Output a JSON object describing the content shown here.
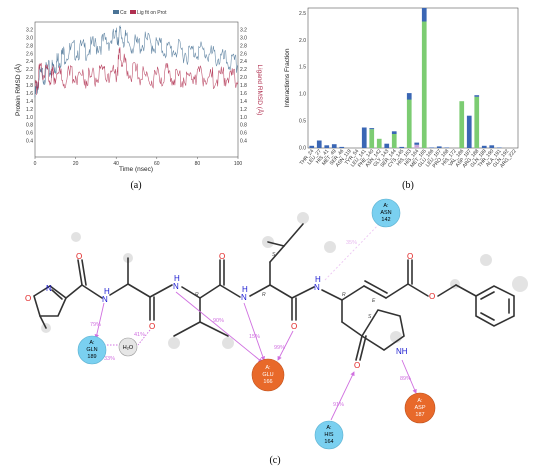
{
  "panels": {
    "a": "(a)",
    "b": "(b)",
    "c": "(c)"
  },
  "chart_data": [
    {
      "type": "line",
      "xlabel": "Time (nsec)",
      "ylabel_left": "Protein RMSD (Å)",
      "ylabel_right": "Ligand RMSD (Å)",
      "legend": [
        "Cα",
        "Lig fit on Prot"
      ],
      "xlim": [
        0,
        100
      ],
      "ylim": [
        0,
        3.4
      ],
      "xticks": [
        "0",
        "20",
        "40",
        "60",
        "80",
        "100"
      ],
      "yticks": [
        "0.4",
        "0.6",
        "0.8",
        "1.0",
        "1.2",
        "1.4",
        "1.6",
        "1.8",
        "2.0",
        "2.2",
        "2.4",
        "2.6",
        "2.8",
        "3.0",
        "3.2"
      ],
      "series": [
        {
          "name": "Cα",
          "color": "#4a7396",
          "x": [
            0,
            2,
            5,
            8,
            10,
            12,
            15,
            20,
            25,
            30,
            35,
            40,
            42,
            45,
            50,
            55,
            60,
            65,
            70,
            75,
            80,
            85,
            90,
            95,
            100
          ],
          "y": [
            1.5,
            2.0,
            2.1,
            2.2,
            2.3,
            2.5,
            2.6,
            2.7,
            2.7,
            2.8,
            2.9,
            3.0,
            3.1,
            2.9,
            2.8,
            2.9,
            2.8,
            2.7,
            2.7,
            2.6,
            2.7,
            2.6,
            2.5,
            2.4,
            2.3
          ]
        },
        {
          "name": "Lig fit on Prot",
          "color": "#b03050",
          "x": [
            0,
            2,
            5,
            8,
            10,
            15,
            20,
            25,
            30,
            35,
            40,
            42,
            45,
            50,
            55,
            60,
            65,
            70,
            75,
            80,
            85,
            90,
            95,
            100
          ],
          "y": [
            1.6,
            2.1,
            2.2,
            2.0,
            2.1,
            2.0,
            2.1,
            2.0,
            2.0,
            2.1,
            2.1,
            2.6,
            2.2,
            2.1,
            2.0,
            2.0,
            2.1,
            2.0,
            2.0,
            2.1,
            2.0,
            2.0,
            2.0,
            1.9
          ]
        }
      ]
    },
    {
      "type": "bar",
      "ylabel": "Interactions Fraction",
      "ylim": [
        0,
        2.6
      ],
      "yticks": [
        "0.0",
        "0.5",
        "1.0",
        "1.5",
        "2.0",
        "2.5"
      ],
      "categories": [
        "THR_24",
        "LEU_27",
        "HIS_41",
        "MET_49",
        "SER_46",
        "ASN_119",
        "TYR_54",
        "LEU_141",
        "PHE_140",
        "ASN_142",
        "GLY_143",
        "SER_144",
        "CYS_145",
        "HIS_163",
        "HIS_164",
        "MET_165",
        "GLU_166",
        "LEU_167",
        "PRO_168",
        "HIS_172",
        "VAL_186",
        "ASP_187",
        "ARG_188",
        "GLN_189",
        "THR_190",
        "ALA_191",
        "GLN_192",
        "ARG_222"
      ],
      "series": [
        {
          "name": "H-bonds",
          "color": "#7ccc72",
          "values": [
            0,
            0,
            0,
            0,
            0,
            0,
            0,
            0,
            0.35,
            0.17,
            0,
            0.26,
            0,
            0.9,
            0,
            2.35,
            0,
            0,
            0,
            0,
            0.87,
            0,
            0.95,
            0,
            0,
            0,
            0,
            0
          ]
        },
        {
          "name": "Hydrophobic",
          "color": "#c9a8d8",
          "values": [
            0,
            0,
            0,
            0,
            0,
            0,
            0,
            0,
            0,
            0,
            0,
            0,
            0,
            0,
            0.06,
            0,
            0,
            0,
            0,
            0,
            0,
            0,
            0,
            0,
            0,
            0,
            0,
            0
          ]
        },
        {
          "name": "Water bridges",
          "color": "#3a66b4",
          "values": [
            0.04,
            0.14,
            0.05,
            0.07,
            0.02,
            0,
            0,
            0.38,
            0.02,
            0,
            0.08,
            0.05,
            0.02,
            0.12,
            0.04,
            0.25,
            0.01,
            0.03,
            0.01,
            0,
            0,
            0.6,
            0.03,
            0.04,
            0.05,
            0.01,
            0,
            0
          ]
        }
      ]
    }
  ],
  "diagram": {
    "residues": [
      {
        "line1": "A:",
        "line2": "ASN",
        "line3": "142",
        "kind": "polar"
      },
      {
        "line1": "A:",
        "line2": "GLN",
        "line3": "189",
        "kind": "polar"
      },
      {
        "line1": "A:",
        "line2": "GLU",
        "line3": "166",
        "kind": "negative"
      },
      {
        "line1": "A:",
        "line2": "HIS",
        "line3": "164",
        "kind": "polar"
      },
      {
        "line1": "A:",
        "line2": "ASP",
        "line3": "187",
        "kind": "negative"
      }
    ],
    "water": "H₂O",
    "percents": [
      "35%",
      "79%",
      "33%",
      "41%",
      "90%",
      "15%",
      "99%",
      "91%",
      "89%"
    ],
    "atoms": {
      "N": "N",
      "O": "O",
      "NH": "NH",
      "H": "H"
    },
    "stereo": [
      "R",
      "R",
      "S",
      "R",
      "E",
      "S"
    ],
    "colors": {
      "polar": "#7ad0f0",
      "negative": "#e8692a",
      "hbond": "#d070e0"
    }
  }
}
